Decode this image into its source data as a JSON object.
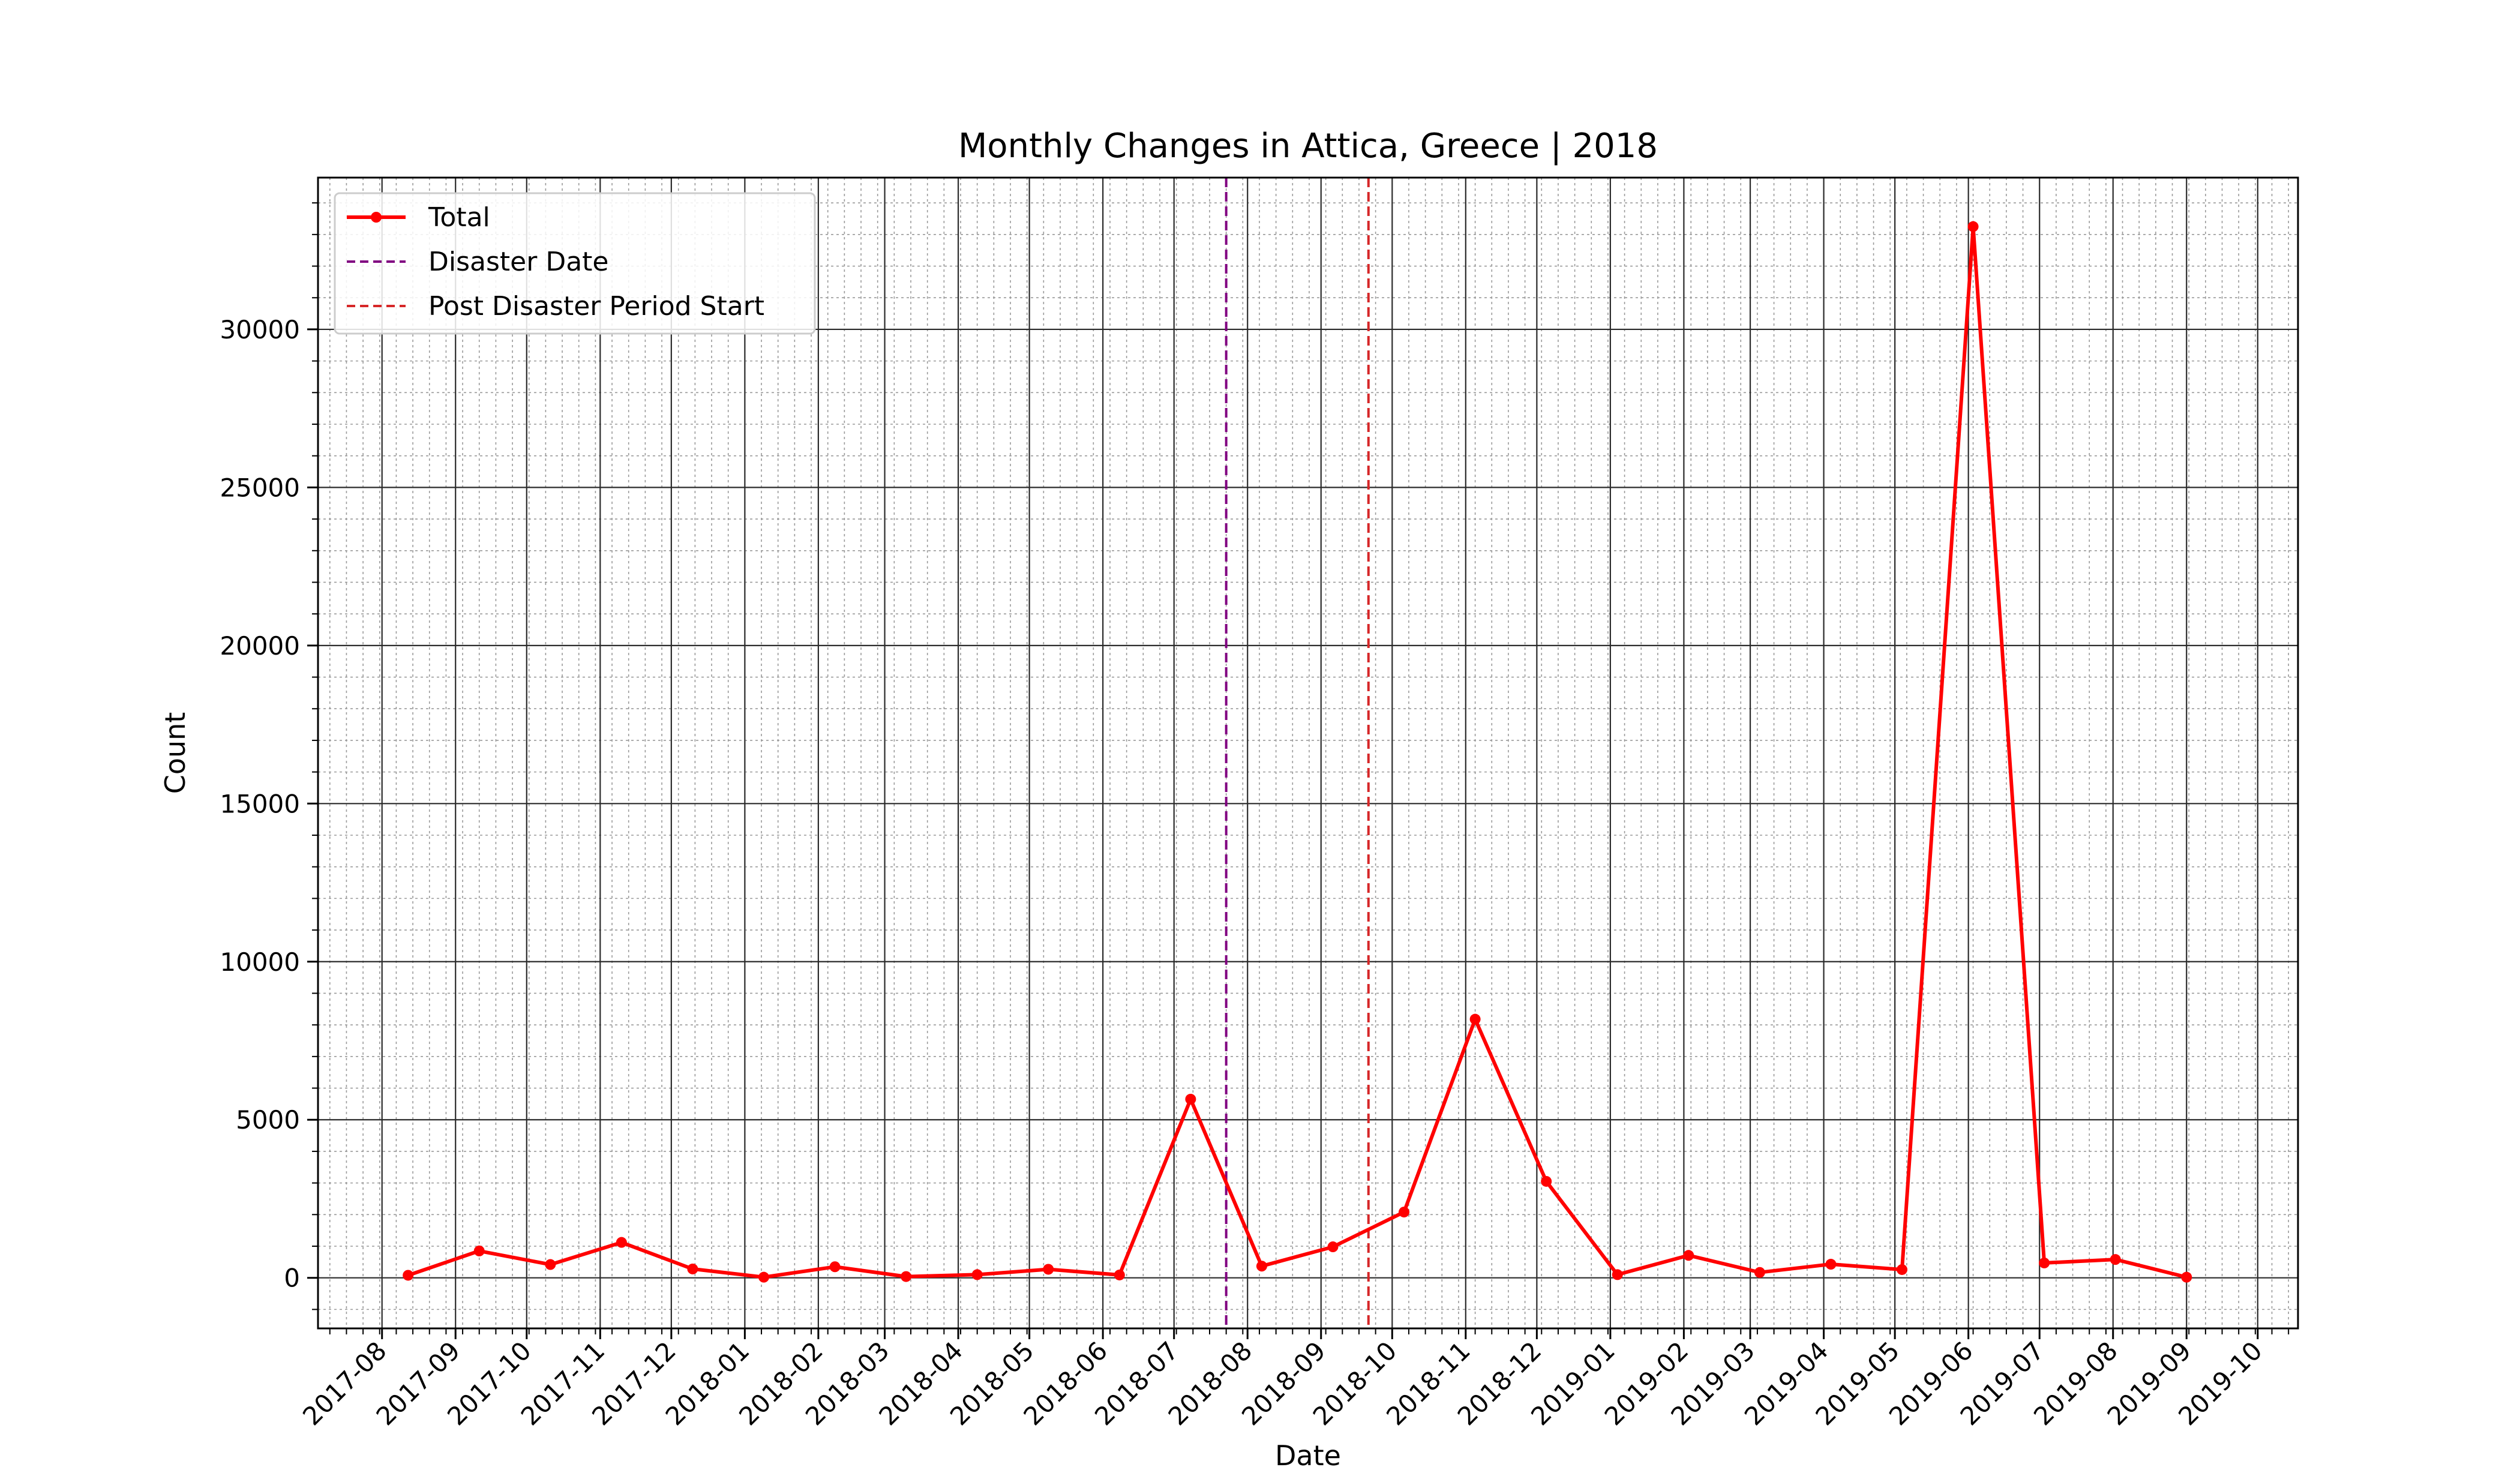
{
  "chart_data": {
    "type": "line",
    "title": "Monthly Changes in Attica, Greece | 2018",
    "xlabel": "Date",
    "ylabel": "Count",
    "ylim": [
      -1600,
      34800
    ],
    "xlim": [
      "2017-07-05",
      "2019-10-18"
    ],
    "y_ticks": [
      0,
      5000,
      10000,
      15000,
      20000,
      25000,
      30000
    ],
    "x_ticks": [
      "2017-08",
      "2017-09",
      "2017-10",
      "2017-11",
      "2017-12",
      "2018-01",
      "2018-02",
      "2018-03",
      "2018-04",
      "2018-05",
      "2018-06",
      "2018-07",
      "2018-08",
      "2018-09",
      "2018-10",
      "2018-11",
      "2018-12",
      "2019-01",
      "2019-02",
      "2019-03",
      "2019-04",
      "2019-05",
      "2019-06",
      "2019-07",
      "2019-08",
      "2019-09",
      "2019-10"
    ],
    "grid": true,
    "legend_position": "upper-left",
    "series": [
      {
        "name": "Total",
        "color": "#ff0000",
        "marker": "circle",
        "points": [
          {
            "x": "2017-08-12",
            "y": 80
          },
          {
            "x": "2017-09-11",
            "y": 850
          },
          {
            "x": "2017-10-11",
            "y": 420
          },
          {
            "x": "2017-11-10",
            "y": 1120
          },
          {
            "x": "2017-12-10",
            "y": 280
          },
          {
            "x": "2018-01-09",
            "y": 20
          },
          {
            "x": "2018-02-08",
            "y": 350
          },
          {
            "x": "2018-03-10",
            "y": 40
          },
          {
            "x": "2018-04-09",
            "y": 100
          },
          {
            "x": "2018-05-09",
            "y": 270
          },
          {
            "x": "2018-06-08",
            "y": 90
          },
          {
            "x": "2018-07-08",
            "y": 5650
          },
          {
            "x": "2018-08-07",
            "y": 370
          },
          {
            "x": "2018-09-06",
            "y": 980
          },
          {
            "x": "2018-10-06",
            "y": 2080
          },
          {
            "x": "2018-11-05",
            "y": 8180
          },
          {
            "x": "2018-12-05",
            "y": 3050
          },
          {
            "x": "2019-01-04",
            "y": 100
          },
          {
            "x": "2019-02-03",
            "y": 710
          },
          {
            "x": "2019-03-05",
            "y": 170
          },
          {
            "x": "2019-04-04",
            "y": 430
          },
          {
            "x": "2019-05-04",
            "y": 260
          },
          {
            "x": "2019-06-03",
            "y": 33250
          },
          {
            "x": "2019-07-03",
            "y": 470
          },
          {
            "x": "2019-08-02",
            "y": 580
          },
          {
            "x": "2019-09-01",
            "y": 20
          }
        ]
      },
      {
        "name": "Disaster Date",
        "type": "vline",
        "color": "#800080",
        "x": "2018-07-23"
      },
      {
        "name": "Post Disaster Period Start",
        "type": "vline",
        "color": "#d62728",
        "x": "2018-09-21"
      }
    ]
  }
}
